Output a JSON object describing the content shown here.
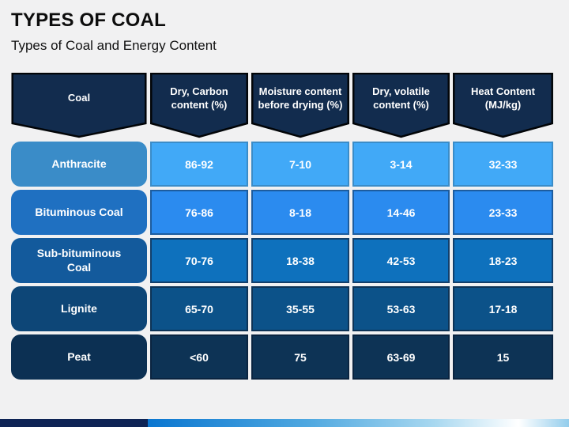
{
  "slide": {
    "title": "TYPES OF COAL",
    "subtitle": "Types of Coal and Energy Content"
  },
  "table": {
    "header_bg": "#122c4e",
    "header_border": "#020508",
    "columns": [
      {
        "label": "Coal"
      },
      {
        "label": "Dry, Carbon content (%)"
      },
      {
        "label": "Moisture content before drying (%)"
      },
      {
        "label": "Dry, volatile content (%)"
      },
      {
        "label": "Heat Content (MJ/kg)"
      }
    ],
    "rows": [
      {
        "name": "Anthracite",
        "values": [
          "86-92",
          "7-10",
          "3-14",
          "32-33"
        ],
        "label_bg": "#3a8cc8",
        "cell_bg": "#41a9f7",
        "cell_border": "#3a8cc8"
      },
      {
        "name": "Bituminous Coal",
        "values": [
          "76-86",
          "8-18",
          "14-46",
          "23-33"
        ],
        "label_bg": "#1f70c1",
        "cell_bg": "#2b8bef",
        "cell_border": "#1d5c9e"
      },
      {
        "name": "Sub-bituminous Coal",
        "values": [
          "70-76",
          "18-38",
          "42-53",
          "18-23"
        ],
        "label_bg": "#135a9c",
        "cell_bg": "#0e71bd",
        "cell_border": "#123f6b"
      },
      {
        "name": "Lignite",
        "values": [
          "65-70",
          "35-55",
          "53-63",
          "17-18"
        ],
        "label_bg": "#0d4677",
        "cell_bg": "#0c5289",
        "cell_border": "#0d3356"
      },
      {
        "name": "Peat",
        "values": [
          "<60",
          "75",
          "63-69",
          "15"
        ],
        "label_bg": "#0c3053",
        "cell_bg": "#0d3355",
        "cell_border": "#0a2440"
      }
    ]
  },
  "footer_bar": {
    "left_color": "#0e2455",
    "gradient": [
      "#0a76d0",
      "#4fa8e0",
      "#a8d8f0",
      "#ffffff",
      "#93cdec"
    ]
  },
  "chart_data": {
    "type": "table",
    "title": "Types of Coal and Energy Content",
    "columns": [
      "Coal",
      "Dry, Carbon content (%)",
      "Moisture content before drying (%)",
      "Dry, volatile content (%)",
      "Heat Content (MJ/kg)"
    ],
    "rows": [
      [
        "Anthracite",
        "86-92",
        "7-10",
        "3-14",
        "32-33"
      ],
      [
        "Bituminous Coal",
        "76-86",
        "8-18",
        "14-46",
        "23-33"
      ],
      [
        "Sub-bituminous Coal",
        "70-76",
        "18-38",
        "42-53",
        "18-23"
      ],
      [
        "Lignite",
        "65-70",
        "35-55",
        "53-63",
        "17-18"
      ],
      [
        "Peat",
        "<60",
        "75",
        "63-69",
        "15"
      ]
    ]
  }
}
